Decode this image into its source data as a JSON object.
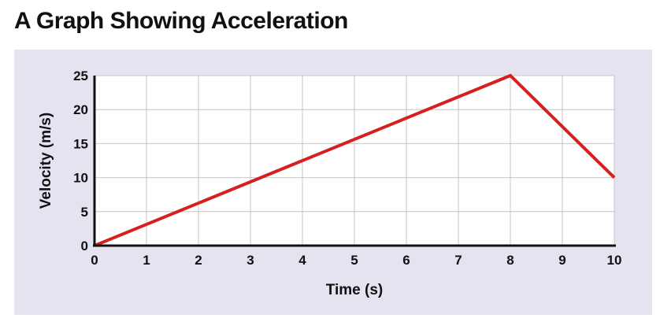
{
  "chart_data": {
    "type": "line",
    "title": "A Graph Showing Acceleration",
    "xlabel": "Time (s)",
    "ylabel": "Velocity (m/s)",
    "x_ticks": [
      "0",
      "1",
      "2",
      "3",
      "4",
      "5",
      "6",
      "7",
      "8",
      "9",
      "10"
    ],
    "y_ticks": [
      "0",
      "5",
      "10",
      "15",
      "20",
      "25"
    ],
    "xlim": [
      0,
      10
    ],
    "ylim": [
      0,
      25
    ],
    "grid": true,
    "series": [
      {
        "color": "#d42020",
        "x": [
          0,
          8,
          10
        ],
        "y": [
          0,
          25,
          10
        ]
      }
    ]
  }
}
